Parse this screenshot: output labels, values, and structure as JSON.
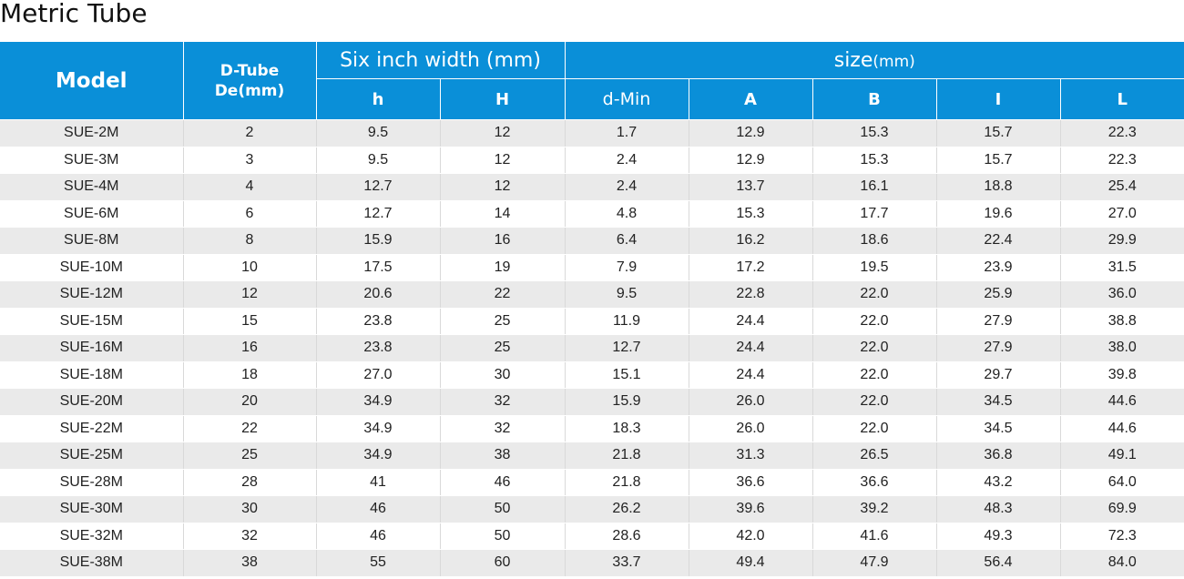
{
  "title": "Metric Tube",
  "header": {
    "model": "Model",
    "dtube_line1": "D-Tube",
    "dtube_line2": "De(mm)",
    "six_inch": "Six inch width (mm)",
    "size": "size",
    "size_unit": "(mm)",
    "cols": [
      "h",
      "H",
      "d-Min",
      "A",
      "B",
      "I",
      "L"
    ]
  },
  "rows": [
    [
      "SUE-2M",
      "2",
      "9.5",
      "12",
      "1.7",
      "12.9",
      "15.3",
      "15.7",
      "22.3"
    ],
    [
      "SUE-3M",
      "3",
      "9.5",
      "12",
      "2.4",
      "12.9",
      "15.3",
      "15.7",
      "22.3"
    ],
    [
      "SUE-4M",
      "4",
      "12.7",
      "12",
      "2.4",
      "13.7",
      "16.1",
      "18.8",
      "25.4"
    ],
    [
      "SUE-6M",
      "6",
      "12.7",
      "14",
      "4.8",
      "15.3",
      "17.7",
      "19.6",
      "27.0"
    ],
    [
      "SUE-8M",
      "8",
      "15.9",
      "16",
      "6.4",
      "16.2",
      "18.6",
      "22.4",
      "29.9"
    ],
    [
      "SUE-10M",
      "10",
      "17.5",
      "19",
      "7.9",
      "17.2",
      "19.5",
      "23.9",
      "31.5"
    ],
    [
      "SUE-12M",
      "12",
      "20.6",
      "22",
      "9.5",
      "22.8",
      "22.0",
      "25.9",
      "36.0"
    ],
    [
      "SUE-15M",
      "15",
      "23.8",
      "25",
      "11.9",
      "24.4",
      "22.0",
      "27.9",
      "38.8"
    ],
    [
      "SUE-16M",
      "16",
      "23.8",
      "25",
      "12.7",
      "24.4",
      "22.0",
      "27.9",
      "38.0"
    ],
    [
      "SUE-18M",
      "18",
      "27.0",
      "30",
      "15.1",
      "24.4",
      "22.0",
      "29.7",
      "39.8"
    ],
    [
      "SUE-20M",
      "20",
      "34.9",
      "32",
      "15.9",
      "26.0",
      "22.0",
      "34.5",
      "44.6"
    ],
    [
      "SUE-22M",
      "22",
      "34.9",
      "32",
      "18.3",
      "26.0",
      "22.0",
      "34.5",
      "44.6"
    ],
    [
      "SUE-25M",
      "25",
      "34.9",
      "38",
      "21.8",
      "31.3",
      "26.5",
      "36.8",
      "49.1"
    ],
    [
      "SUE-28M",
      "28",
      "41",
      "46",
      "21.8",
      "36.6",
      "36.6",
      "43.2",
      "64.0"
    ],
    [
      "SUE-30M",
      "30",
      "46",
      "50",
      "26.2",
      "39.6",
      "39.2",
      "48.3",
      "69.9"
    ],
    [
      "SUE-32M",
      "32",
      "46",
      "50",
      "28.6",
      "42.0",
      "41.6",
      "49.3",
      "72.3"
    ],
    [
      "SUE-38M",
      "38",
      "55",
      "60",
      "33.7",
      "49.4",
      "47.9",
      "56.4",
      "84.0"
    ]
  ]
}
